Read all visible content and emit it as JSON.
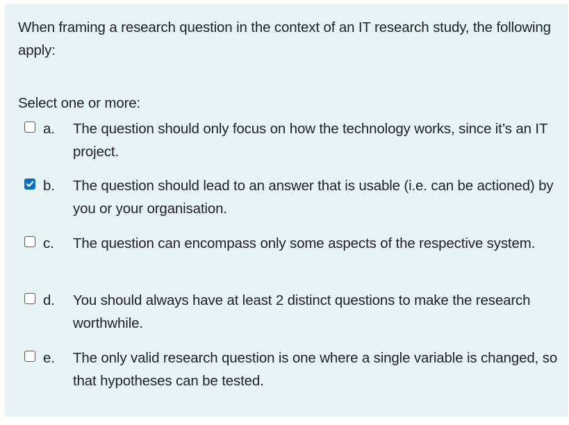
{
  "question": {
    "text": "When framing a research question in the context of an IT research study, the following apply:",
    "prompt": "Select one or more:"
  },
  "colors": {
    "panel_background": "#e7f3f5",
    "checkbox_checked": "#0f6cbf"
  },
  "options": [
    {
      "letter": "a.",
      "text": "The question should only focus on how the technology works, since it’s an IT project.",
      "checked": false
    },
    {
      "letter": "b.",
      "text": "The question should lead to an answer that is usable (i.e. can be actioned) by you or your organisation.",
      "checked": true
    },
    {
      "letter": "c.",
      "text": "The question can encompass only some aspects of the respective system.",
      "checked": false
    },
    {
      "letter": "d.",
      "text": "You should always have at least 2 distinct questions to make the research worthwhile.",
      "checked": false
    },
    {
      "letter": "e.",
      "text": "The only valid research question is one where a single variable is changed, so that hypotheses can be tested.",
      "checked": false
    }
  ]
}
